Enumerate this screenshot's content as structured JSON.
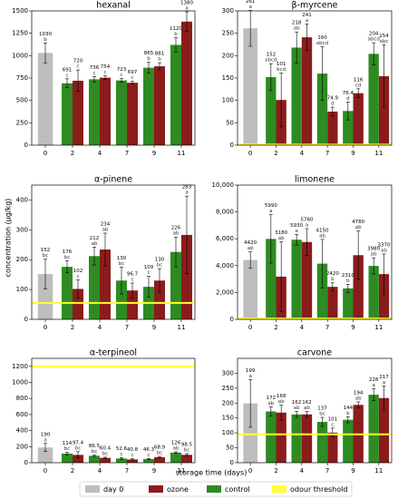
{
  "legend": [
    {
      "name": "day 0",
      "color": "#bdbdbd"
    },
    {
      "name": "ozone",
      "color": "#8b1c1c"
    },
    {
      "name": "control",
      "color": "#2e8b22"
    },
    {
      "name": "odour threshold",
      "color": "#ffff33"
    }
  ],
  "x_label": "storage time (days)",
  "y_label": "concentration (µg/kg)",
  "chart_data": [
    {
      "type": "bar",
      "title": "hexanal",
      "categories": [
        "0",
        "2",
        "4",
        "7",
        "9",
        "11"
      ],
      "ylim": [
        0,
        1500
      ],
      "yticks": [
        0,
        250,
        500,
        750,
        1000,
        1250,
        1500
      ],
      "threshold": null,
      "series": [
        {
          "values": [
            1030,
            null,
            null,
            null,
            null,
            null
          ],
          "errors": [
            110,
            null,
            null,
            null,
            null,
            null
          ],
          "letters": [
            "b",
            null,
            null,
            null,
            null,
            null
          ]
        },
        {
          "values": [
            null,
            720,
            754,
            697,
            881,
            1380
          ],
          "errors": [
            null,
            120,
            20,
            15,
            40,
            110
          ],
          "letters": [
            null,
            "c",
            "c",
            "c",
            "b",
            "a"
          ]
        },
        {
          "values": [
            null,
            691,
            736,
            723,
            865,
            1120
          ],
          "errors": [
            null,
            50,
            30,
            20,
            60,
            80
          ],
          "letters": [
            null,
            "c",
            "c",
            "c",
            "b",
            "b"
          ]
        }
      ]
    },
    {
      "type": "bar",
      "title": "β-myrcene",
      "categories": [
        "0",
        "2",
        "4",
        "7",
        "9",
        "11"
      ],
      "ylim": [
        0,
        300
      ],
      "yticks": [
        0,
        50,
        100,
        150,
        200,
        250,
        300
      ],
      "threshold": 1.2,
      "series": [
        {
          "values": [
            261,
            null,
            null,
            null,
            null,
            null
          ],
          "errors": [
            40,
            null,
            null,
            null,
            null,
            null
          ],
          "letters": [
            "a",
            null,
            null,
            null,
            null,
            null
          ]
        },
        {
          "values": [
            null,
            101,
            241,
            74.9,
            116,
            154
          ],
          "errors": [
            null,
            60,
            30,
            10,
            10,
            70
          ],
          "letters": [
            null,
            "bcd",
            "a",
            "d",
            "cd",
            "abc"
          ]
        },
        {
          "values": [
            null,
            152,
            218,
            160,
            76.4,
            204
          ],
          "errors": [
            null,
            30,
            35,
            60,
            20,
            25
          ],
          "letters": [
            null,
            "abcd",
            "ab",
            "abcd",
            "d",
            "abcd"
          ]
        }
      ]
    },
    {
      "type": "bar",
      "title": "α-pinene",
      "categories": [
        "0",
        "2",
        "4",
        "7",
        "9",
        "11"
      ],
      "ylim": [
        0,
        450
      ],
      "yticks": [
        0,
        100,
        200,
        300,
        400
      ],
      "threshold": 55,
      "series": [
        {
          "values": [
            152,
            null,
            null,
            null,
            null,
            null
          ],
          "errors": [
            50,
            null,
            null,
            null,
            null,
            null
          ],
          "letters": [
            "bc",
            null,
            null,
            null,
            null,
            null
          ]
        },
        {
          "values": [
            null,
            102,
            234,
            96.7,
            130,
            283
          ],
          "errors": [
            null,
            30,
            55,
            25,
            40,
            130
          ],
          "letters": [
            null,
            "c",
            "ab",
            "c",
            "bc",
            "a"
          ]
        },
        {
          "values": [
            null,
            176,
            212,
            130,
            109,
            226
          ],
          "errors": [
            null,
            20,
            30,
            45,
            35,
            50
          ],
          "letters": [
            null,
            "bc",
            "ab",
            "bc",
            "c",
            "ab"
          ]
        }
      ]
    },
    {
      "type": "bar",
      "title": "limonene",
      "categories": [
        "0",
        "2",
        "4",
        "7",
        "9",
        "11"
      ],
      "ylim": [
        0,
        10000
      ],
      "yticks": [
        0,
        {
          "value": 2000,
          "label": "2,000"
        },
        {
          "value": 4000,
          "label": "4,000"
        },
        {
          "value": 6000,
          "label": "6,000"
        },
        {
          "value": 8000,
          "label": "8,000"
        },
        {
          "value": 10000,
          "label": "10,000"
        }
      ],
      "threshold": 60,
      "series": [
        {
          "values": [
            4420,
            null,
            null,
            null,
            null,
            null
          ],
          "errors": [
            600,
            null,
            null,
            null,
            null,
            null
          ],
          "letters": [
            "ab",
            null,
            null,
            null,
            null,
            null
          ]
        },
        {
          "values": [
            null,
            3180,
            5760,
            2420,
            4780,
            3370
          ],
          "errors": [
            null,
            2600,
            1000,
            300,
            1800,
            1500
          ],
          "letters": [
            null,
            "ab",
            "a",
            "b",
            "ab",
            "ab"
          ]
        },
        {
          "values": [
            null,
            5990,
            5930,
            4150,
            2310,
            3980
          ],
          "errors": [
            null,
            1800,
            400,
            1800,
            300,
            600
          ],
          "letters": [
            null,
            "a",
            "a",
            "ab",
            "b",
            "ab"
          ]
        }
      ]
    },
    {
      "type": "bar",
      "title": "α-terpineol",
      "categories": [
        "0",
        "2",
        "4",
        "7",
        "9",
        "11"
      ],
      "ylim": [
        0,
        1300
      ],
      "yticks": [
        0,
        200,
        400,
        600,
        800,
        1000,
        1200
      ],
      "threshold": 1200,
      "series": [
        {
          "values": [
            190,
            null,
            null,
            null,
            null,
            null
          ],
          "errors": [
            50,
            null,
            null,
            null,
            null,
            null
          ],
          "letters": [
            "a",
            null,
            null,
            null,
            null,
            null
          ]
        },
        {
          "values": [
            null,
            97.4,
            60.4,
            40.8,
            68.9,
            98.5
          ],
          "errors": [
            null,
            40,
            8,
            8,
            10,
            15
          ],
          "letters": [
            null,
            "bc",
            "bc",
            "c",
            "bc",
            "bc"
          ]
        },
        {
          "values": [
            null,
            114,
            86.5,
            52.6,
            46.3,
            126
          ],
          "errors": [
            null,
            15,
            10,
            10,
            5,
            10
          ],
          "letters": [
            null,
            "bc",
            "bc",
            "c",
            "c",
            "ab"
          ]
        }
      ]
    },
    {
      "type": "bar",
      "title": "carvone",
      "categories": [
        "0",
        "2",
        "4",
        "7",
        "9",
        "11"
      ],
      "ylim": [
        0,
        350
      ],
      "yticks": [
        0,
        50,
        100,
        150,
        200,
        250,
        300
      ],
      "threshold": 95,
      "series": [
        {
          "values": [
            199,
            null,
            null,
            null,
            null,
            null
          ],
          "errors": [
            80,
            null,
            null,
            null,
            null,
            null
          ],
          "letters": [
            "a",
            null,
            null,
            null,
            null,
            null
          ]
        },
        {
          "values": [
            null,
            168,
            162,
            101,
            194,
            217
          ],
          "errors": [
            null,
            25,
            10,
            15,
            10,
            40
          ],
          "letters": [
            null,
            "ab",
            "ab",
            "c",
            "ab",
            "a"
          ]
        },
        {
          "values": [
            null,
            172,
            162,
            137,
            144,
            228
          ],
          "errors": [
            null,
            15,
            10,
            15,
            10,
            20
          ],
          "letters": [
            null,
            "ab",
            "ab",
            "bc",
            "b",
            "a"
          ]
        }
      ]
    }
  ]
}
